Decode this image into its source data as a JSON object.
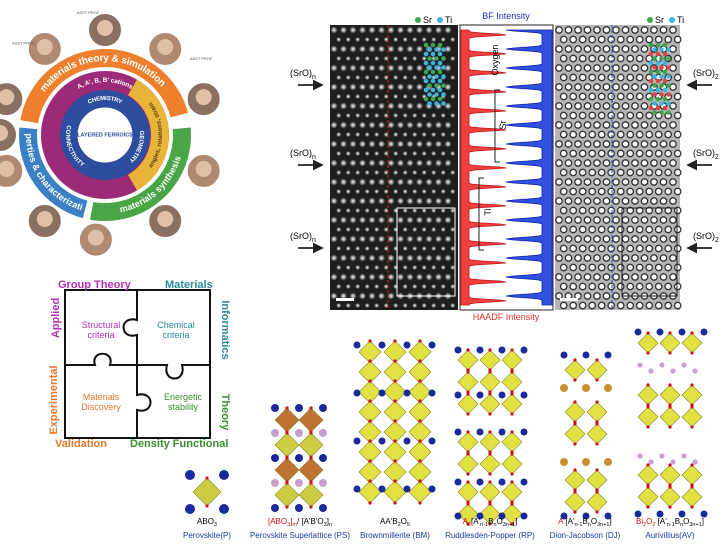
{
  "wheel": {
    "arcs": [
      "materials theory & simulation",
      "properties & characterization",
      "materials synthesis"
    ],
    "outer_ring": [
      "A, A', B, B' cations",
      "angles, rotations, strain"
    ],
    "inner_ring": [
      "CHEMISTRY",
      "CONNECTIVITY",
      "GEOMETRY"
    ],
    "center": "LAYERED FERROICS",
    "badge": "ASST PROF"
  },
  "microscopy": {
    "legend": [
      "Sr",
      "Ti"
    ],
    "bf": "BF Intensity",
    "haadf": "HAADF Intensity",
    "profile_labels": [
      "Oxygen",
      "Sr",
      "Ti"
    ],
    "left_labels": [
      {
        "main": "(SrO)",
        "sub": "n"
      },
      {
        "main": "(SrO)",
        "sub": "n"
      },
      {
        "main": "(SrO)",
        "sub": "n"
      }
    ],
    "right_labels": [
      {
        "main": "(SrO)",
        "sub": "2"
      },
      {
        "main": "(SrO)",
        "sub": "2"
      },
      {
        "main": "(SrO)",
        "sub": "2"
      }
    ]
  },
  "puzzle": {
    "edges": [
      {
        "text": "Group Theory",
        "color": "#b12fb5"
      },
      {
        "text": "Materials",
        "color": "#2b8a9c"
      },
      {
        "text": "Applied",
        "color": "#b12fb5"
      },
      {
        "text": "Informatics",
        "color": "#2b8a9c"
      },
      {
        "text": "Experimental",
        "color": "#e8762b"
      },
      {
        "text": "Theory",
        "color": "#3a8f2f"
      },
      {
        "text": "Validation",
        "color": "#e8762b"
      },
      {
        "text": "Density Functional",
        "color": "#3a8f2f"
      }
    ],
    "pieces": [
      {
        "text": "Structural criteria",
        "color": "#b12fb5"
      },
      {
        "text": "Chemical criteria",
        "color": "#2b8a9c"
      },
      {
        "text": "Materials Discovery",
        "color": "#e8762b"
      },
      {
        "text": "Energetic stability",
        "color": "#3a8f2f"
      }
    ]
  },
  "structures": [
    {
      "formula": [
        {
          "text": "ABO"
        },
        {
          "text": "3",
          "sub": true
        }
      ],
      "name": "Perovskite(P)"
    },
    {
      "formula": [
        {
          "text": "[ABO",
          "color": "#d01010"
        },
        {
          "text": "3",
          "sub": true,
          "color": "#d01010"
        },
        {
          "text": "]",
          "color": "#d01010"
        },
        {
          "text": "m",
          "sub": true,
          "color": "#d01010"
        },
        {
          "text": "/ [A'B'O"
        },
        {
          "text": "3",
          "sub": true
        },
        {
          "text": "]"
        },
        {
          "text": "n",
          "sub": true
        }
      ],
      "name": "Perovskite Superlattice (PS)"
    },
    {
      "formula": [
        {
          "text": "AA'B"
        },
        {
          "text": "2",
          "sub": true
        },
        {
          "text": "O"
        },
        {
          "text": "5",
          "sub": true
        }
      ],
      "name": "Brownmillerite (BM)"
    },
    {
      "formula": [
        {
          "text": "A",
          "color": "#d01010"
        },
        {
          "text": "2",
          "sub": true,
          "color": "#d01010"
        },
        {
          "text": "[A'"
        },
        {
          "text": "n-1",
          "sub": true
        },
        {
          "text": "B"
        },
        {
          "text": "n",
          "sub": true
        },
        {
          "text": "O"
        },
        {
          "text": "3n+1",
          "sub": true
        },
        {
          "text": "]"
        }
      ],
      "name": "Ruddlesden-Popper (RP)"
    },
    {
      "formula": [
        {
          "text": "A ",
          "color": "#d01010"
        },
        {
          "text": "[A'"
        },
        {
          "text": "n-1",
          "sub": true
        },
        {
          "text": "B"
        },
        {
          "text": "n",
          "sub": true
        },
        {
          "text": "O"
        },
        {
          "text": "3n+1",
          "sub": true
        },
        {
          "text": "]"
        }
      ],
      "name": "Dion-Jacobson (DJ)"
    },
    {
      "formula": [
        {
          "text": "Bi",
          "color": "#d01010"
        },
        {
          "text": "2",
          "sub": true,
          "color": "#d01010"
        },
        {
          "text": "O",
          "color": "#d01010"
        },
        {
          "text": "2",
          "sub": true,
          "color": "#d01010"
        },
        {
          "text": " [A'"
        },
        {
          "text": "n-1",
          "sub": true
        },
        {
          "text": "B"
        },
        {
          "text": "n",
          "sub": true
        },
        {
          "text": "O"
        },
        {
          "text": "3n+1",
          "sub": true
        },
        {
          "text": "]"
        }
      ],
      "name": "Aurivillius(AV)"
    }
  ]
}
